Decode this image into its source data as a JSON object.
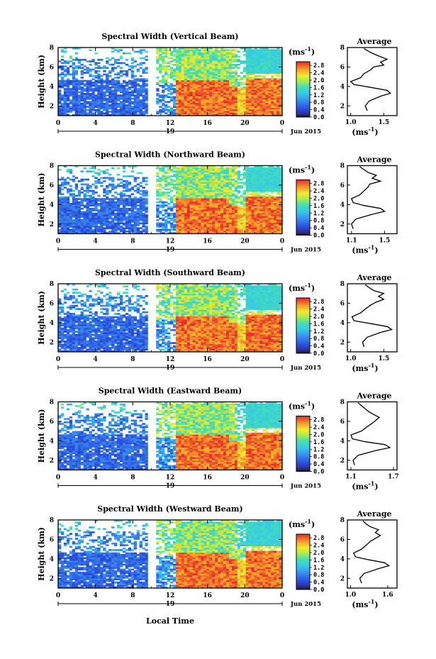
{
  "figure": {
    "shared_xlabel": "Local Time",
    "date_label": "Jun 2015",
    "day_label": "19",
    "colorbar_unit": "(ms",
    "colorbar_unit_exp": "-1",
    "colorbar_unit_close": ")",
    "avg_unit": "(ms",
    "avg_unit_exp": "-1",
    "avg_unit_close": ")",
    "avg_title": "Average",
    "height_label": "Height (km)"
  },
  "chart_data": [
    {
      "type": "heatmap",
      "title": "Spectral Width (Vertical Beam)",
      "ylabel": "Height (km)",
      "xlabel": "",
      "x_ticks": [
        "0",
        "4",
        "8",
        "12",
        "16",
        "20",
        "0"
      ],
      "x_range": [
        0,
        24
      ],
      "y_ticks": [
        "2",
        "4",
        "6",
        "8"
      ],
      "y_range": [
        1,
        8
      ],
      "colorbar": {
        "range": [
          0,
          3.0
        ],
        "ticks": [
          "0.0",
          "0.4",
          "0.8",
          "1.2",
          "1.6",
          "2.0",
          "2.4",
          "2.8"
        ]
      },
      "profile": {
        "title": "Average",
        "xlabel": "(ms-1)",
        "x_ticks": [
          "1.0",
          "1.5"
        ],
        "x_range": [
          0.95,
          1.7
        ],
        "y_ticks": [
          "2",
          "4",
          "6",
          "8"
        ],
        "y_range": [
          1,
          8
        ],
        "points": [
          [
            1.25,
            1.5
          ],
          [
            1.22,
            2.0
          ],
          [
            1.28,
            2.5
          ],
          [
            1.45,
            3.0
          ],
          [
            1.6,
            3.3
          ],
          [
            1.55,
            3.6
          ],
          [
            1.3,
            3.9
          ],
          [
            1.05,
            4.2
          ],
          [
            1.0,
            4.5
          ],
          [
            1.15,
            4.9
          ],
          [
            1.2,
            5.3
          ],
          [
            1.3,
            5.7
          ],
          [
            1.35,
            6.0
          ],
          [
            1.5,
            6.2
          ],
          [
            1.45,
            6.5
          ],
          [
            1.55,
            6.8
          ],
          [
            1.4,
            7.2
          ],
          [
            1.3,
            7.5
          ],
          [
            1.2,
            7.9
          ]
        ]
      }
    },
    {
      "type": "heatmap",
      "title": "Spectral Width (Northward Beam)",
      "ylabel": "Height (km)",
      "xlabel": "",
      "x_ticks": [
        "0",
        "4",
        "8",
        "12",
        "16",
        "20",
        "0"
      ],
      "x_range": [
        0,
        24
      ],
      "y_ticks": [
        "2",
        "4",
        "6",
        "8"
      ],
      "y_range": [
        1,
        8
      ],
      "colorbar": {
        "range": [
          0,
          3.0
        ],
        "ticks": [
          "0.0",
          "0.4",
          "0.8",
          "1.2",
          "1.6",
          "2.0",
          "2.4",
          "2.8"
        ]
      },
      "profile": {
        "title": "Average",
        "xlabel": "(ms-1)",
        "x_ticks": [
          "1.1",
          "1.5"
        ],
        "x_range": [
          1.05,
          1.65
        ],
        "y_ticks": [
          "2",
          "4",
          "6",
          "8"
        ],
        "y_range": [
          1,
          8
        ],
        "points": [
          [
            1.12,
            1.5
          ],
          [
            1.1,
            2.0
          ],
          [
            1.15,
            2.5
          ],
          [
            1.35,
            3.0
          ],
          [
            1.5,
            3.3
          ],
          [
            1.45,
            3.6
          ],
          [
            1.25,
            3.9
          ],
          [
            1.12,
            4.2
          ],
          [
            1.1,
            4.6
          ],
          [
            1.2,
            5.0
          ],
          [
            1.25,
            5.4
          ],
          [
            1.3,
            5.8
          ],
          [
            1.32,
            6.1
          ],
          [
            1.45,
            6.4
          ],
          [
            1.35,
            6.7
          ],
          [
            1.4,
            7.0
          ],
          [
            1.3,
            7.3
          ],
          [
            1.25,
            7.6
          ],
          [
            1.2,
            7.9
          ]
        ]
      }
    },
    {
      "type": "heatmap",
      "title": "Spectral Width (Southward Beam)",
      "ylabel": "Height (km)",
      "xlabel": "",
      "x_ticks": [
        "0",
        "4",
        "8",
        "12",
        "16",
        "20",
        "0"
      ],
      "x_range": [
        0,
        24
      ],
      "y_ticks": [
        "2",
        "4",
        "6",
        "8"
      ],
      "y_range": [
        1,
        8
      ],
      "colorbar": {
        "range": [
          0,
          3.0
        ],
        "ticks": [
          "0.0",
          "0.4",
          "0.8",
          "1.2",
          "1.6",
          "2.0",
          "2.4",
          "2.8"
        ]
      },
      "profile": {
        "title": "Average",
        "xlabel": "(ms-1)",
        "x_ticks": [
          "1.0",
          "1.5"
        ],
        "x_range": [
          0.95,
          1.7
        ],
        "y_ticks": [
          "2",
          "4",
          "6",
          "8"
        ],
        "y_range": [
          1,
          8
        ],
        "points": [
          [
            1.2,
            1.5
          ],
          [
            1.18,
            2.0
          ],
          [
            1.25,
            2.5
          ],
          [
            1.45,
            3.0
          ],
          [
            1.62,
            3.3
          ],
          [
            1.55,
            3.6
          ],
          [
            1.3,
            3.9
          ],
          [
            1.05,
            4.2
          ],
          [
            1.02,
            4.6
          ],
          [
            1.15,
            5.0
          ],
          [
            1.22,
            5.4
          ],
          [
            1.3,
            5.8
          ],
          [
            1.38,
            6.1
          ],
          [
            1.5,
            6.4
          ],
          [
            1.42,
            6.7
          ],
          [
            1.5,
            7.0
          ],
          [
            1.35,
            7.3
          ],
          [
            1.28,
            7.6
          ],
          [
            1.22,
            7.9
          ]
        ]
      }
    },
    {
      "type": "heatmap",
      "title": "Spectral Width (Eastward Beam)",
      "ylabel": "Height (km)",
      "xlabel": "",
      "x_ticks": [
        "0",
        "4",
        "8",
        "12",
        "16",
        "20",
        "0"
      ],
      "x_range": [
        0,
        24
      ],
      "y_ticks": [
        "2",
        "4",
        "6",
        "8"
      ],
      "y_range": [
        1,
        8
      ],
      "colorbar": {
        "range": [
          0,
          3.0
        ],
        "ticks": [
          "0.0",
          "0.4",
          "0.8",
          "1.2",
          "1.6",
          "2.0",
          "2.4",
          "2.8"
        ]
      },
      "profile": {
        "title": "Average",
        "xlabel": "(ms-1)",
        "x_ticks": [
          "1.1",
          "1.7"
        ],
        "x_range": [
          1.05,
          1.75
        ],
        "y_ticks": [
          "2",
          "4",
          "6",
          "8"
        ],
        "y_range": [
          1,
          8
        ],
        "points": [
          [
            1.15,
            1.5
          ],
          [
            1.13,
            2.0
          ],
          [
            1.2,
            2.5
          ],
          [
            1.45,
            3.0
          ],
          [
            1.65,
            3.3
          ],
          [
            1.58,
            3.6
          ],
          [
            1.3,
            3.9
          ],
          [
            1.12,
            4.2
          ],
          [
            1.1,
            4.6
          ],
          [
            1.25,
            5.0
          ],
          [
            1.32,
            5.4
          ],
          [
            1.4,
            5.8
          ],
          [
            1.45,
            6.1
          ],
          [
            1.5,
            6.4
          ],
          [
            1.42,
            6.7
          ],
          [
            1.35,
            7.0
          ],
          [
            1.3,
            7.3
          ],
          [
            1.25,
            7.6
          ],
          [
            1.2,
            7.9
          ]
        ]
      }
    },
    {
      "type": "heatmap",
      "title": "Spectral Width (Westward Beam)",
      "ylabel": "Height (km)",
      "xlabel": "Local Time",
      "x_ticks": [
        "0",
        "4",
        "8",
        "12",
        "16",
        "20",
        "0"
      ],
      "x_range": [
        0,
        24
      ],
      "y_ticks": [
        "2",
        "4",
        "6",
        "8"
      ],
      "y_range": [
        1,
        8
      ],
      "colorbar": {
        "range": [
          0,
          3.0
        ],
        "ticks": [
          "0.0",
          "0.4",
          "0.8",
          "1.2",
          "1.6",
          "2.0",
          "2.4",
          "2.8"
        ]
      },
      "profile": {
        "title": "Average",
        "xlabel": "(ms-1)",
        "x_ticks": [
          "1.0",
          "1.6"
        ],
        "x_range": [
          0.95,
          1.75
        ],
        "y_ticks": [
          "2",
          "4",
          "6",
          "8"
        ],
        "y_range": [
          1,
          8
        ],
        "points": [
          [
            1.18,
            1.5
          ],
          [
            1.15,
            2.0
          ],
          [
            1.22,
            2.5
          ],
          [
            1.45,
            3.0
          ],
          [
            1.62,
            3.3
          ],
          [
            1.55,
            3.6
          ],
          [
            1.3,
            3.9
          ],
          [
            1.08,
            4.2
          ],
          [
            1.05,
            4.6
          ],
          [
            1.18,
            5.0
          ],
          [
            1.25,
            5.4
          ],
          [
            1.32,
            5.8
          ],
          [
            1.4,
            6.1
          ],
          [
            1.48,
            6.4
          ],
          [
            1.4,
            6.7
          ],
          [
            1.45,
            7.0
          ],
          [
            1.32,
            7.3
          ],
          [
            1.25,
            7.6
          ],
          [
            1.2,
            7.9
          ]
        ]
      }
    }
  ]
}
